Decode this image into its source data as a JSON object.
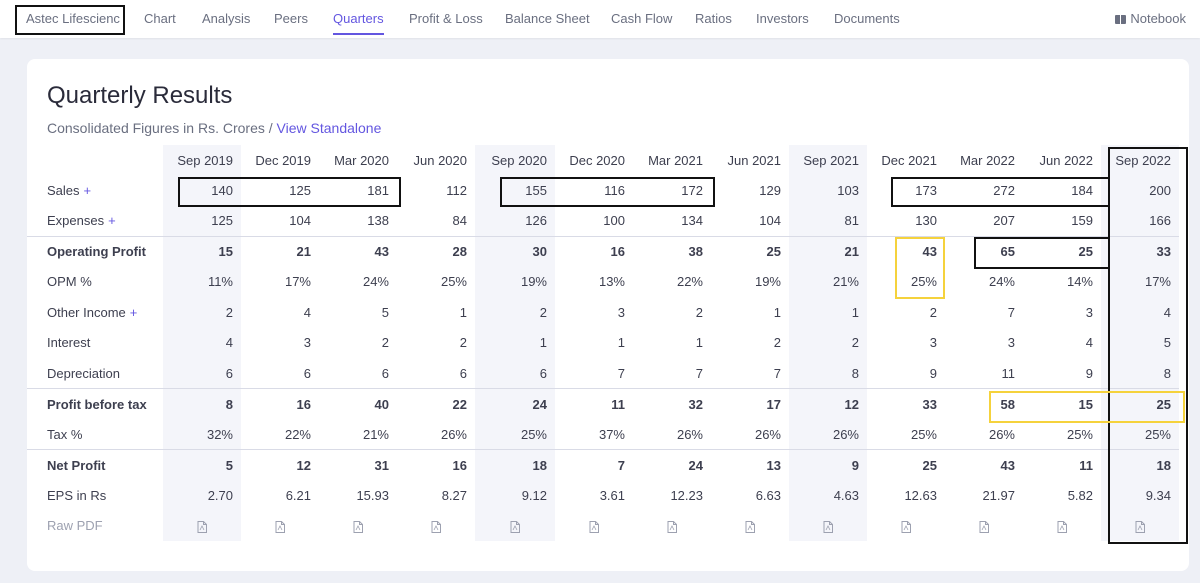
{
  "nav": {
    "company": "Astec Lifescienc",
    "items": [
      "Chart",
      "Analysis",
      "Peers",
      "Quarters",
      "Profit & Loss",
      "Balance Sheet",
      "Cash Flow",
      "Ratios",
      "Investors",
      "Documents"
    ],
    "active": "Quarters",
    "notebook": "Notebook"
  },
  "section": {
    "title": "Quarterly Results",
    "subtitle": "Consolidated Figures in Rs. Crores /",
    "link": "View Standalone"
  },
  "table": {
    "periods": [
      "Sep 2019",
      "Dec 2019",
      "Mar 2020",
      "Jun 2020",
      "Sep 2020",
      "Dec 2020",
      "Mar 2021",
      "Jun 2021",
      "Sep 2021",
      "Dec 2021",
      "Mar 2022",
      "Jun 2022",
      "Sep 2022"
    ],
    "rows": [
      {
        "label": "Sales",
        "plus": "+",
        "values": [
          "140",
          "125",
          "181",
          "112",
          "155",
          "116",
          "172",
          "129",
          "103",
          "173",
          "272",
          "184",
          "200"
        ]
      },
      {
        "label": "Expenses",
        "plus": "+",
        "values": [
          "125",
          "104",
          "138",
          "84",
          "126",
          "100",
          "134",
          "104",
          "81",
          "130",
          "207",
          "159",
          "166"
        ]
      },
      {
        "label": "Operating Profit",
        "values": [
          "15",
          "21",
          "43",
          "28",
          "30",
          "16",
          "38",
          "25",
          "21",
          "43",
          "65",
          "25",
          "33"
        ]
      },
      {
        "label": "OPM %",
        "values": [
          "11%",
          "17%",
          "24%",
          "25%",
          "19%",
          "13%",
          "22%",
          "19%",
          "21%",
          "25%",
          "24%",
          "14%",
          "17%"
        ]
      },
      {
        "label": "Other Income",
        "plus": "+",
        "values": [
          "2",
          "4",
          "5",
          "1",
          "2",
          "3",
          "2",
          "1",
          "1",
          "2",
          "7",
          "3",
          "4"
        ]
      },
      {
        "label": "Interest",
        "values": [
          "4",
          "3",
          "2",
          "2",
          "1",
          "1",
          "1",
          "2",
          "2",
          "3",
          "3",
          "4",
          "5"
        ]
      },
      {
        "label": "Depreciation",
        "values": [
          "6",
          "6",
          "6",
          "6",
          "6",
          "7",
          "7",
          "7",
          "8",
          "9",
          "11",
          "9",
          "8"
        ]
      },
      {
        "label": "Profit before tax",
        "values": [
          "8",
          "16",
          "40",
          "22",
          "24",
          "11",
          "32",
          "17",
          "12",
          "33",
          "58",
          "15",
          "25"
        ]
      },
      {
        "label": "Tax %",
        "values": [
          "32%",
          "22%",
          "21%",
          "26%",
          "25%",
          "37%",
          "26%",
          "26%",
          "26%",
          "25%",
          "26%",
          "25%",
          "25%"
        ]
      },
      {
        "label": "Net Profit",
        "values": [
          "5",
          "12",
          "31",
          "16",
          "18",
          "7",
          "24",
          "13",
          "9",
          "25",
          "43",
          "11",
          "18"
        ]
      },
      {
        "label": "EPS in Rs",
        "values": [
          "2.70",
          "6.21",
          "15.93",
          "8.27",
          "9.12",
          "3.61",
          "12.23",
          "6.63",
          "4.63",
          "12.63",
          "21.97",
          "5.82",
          "9.34"
        ]
      }
    ],
    "raw_pdf_label": "Raw PDF"
  },
  "colors": {
    "accent": "#6356e0",
    "highlight_black": "#111111",
    "highlight_yellow": "#f5d23c"
  }
}
